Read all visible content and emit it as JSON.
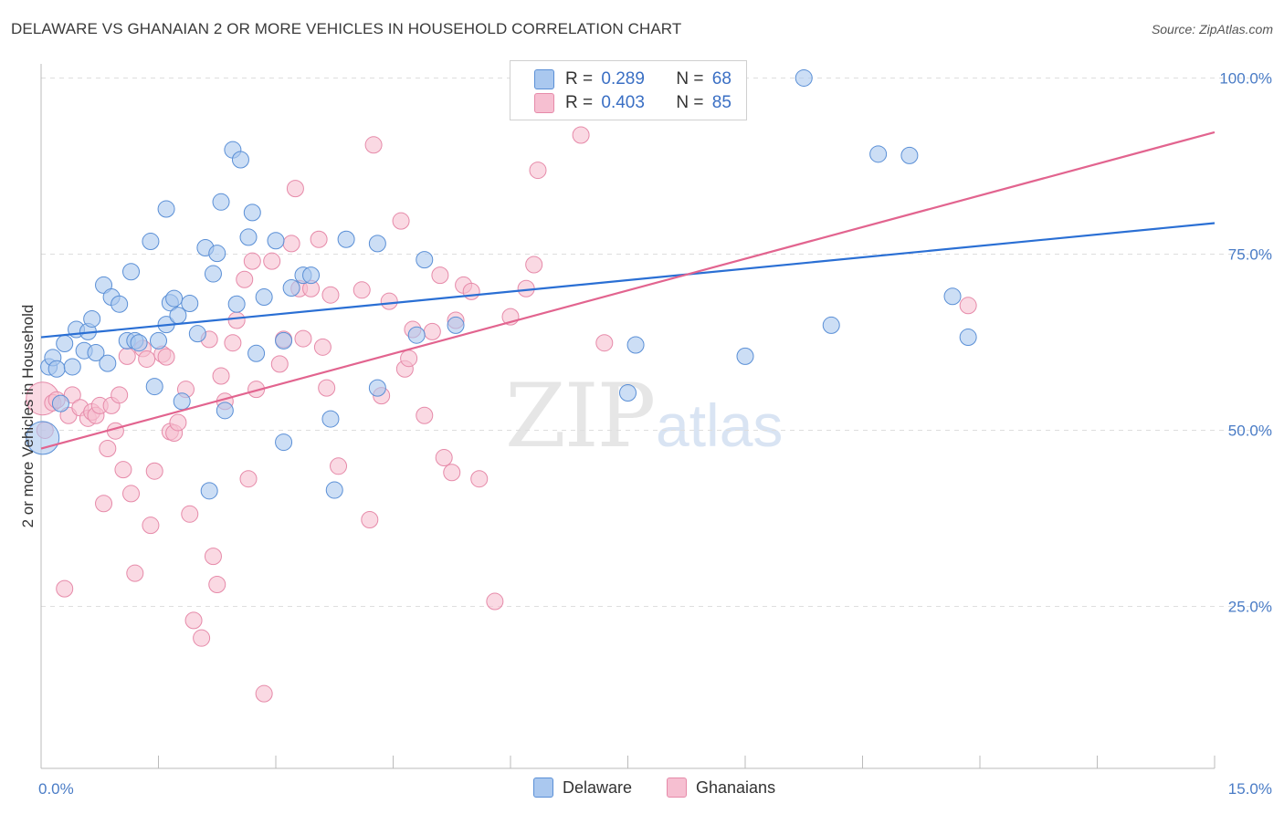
{
  "title": "DELAWARE VS GHANAIAN 2 OR MORE VEHICLES IN HOUSEHOLD CORRELATION CHART",
  "source": "Source: ZipAtlas.com",
  "watermark": {
    "zip": "ZIP",
    "atlas": "atlas"
  },
  "legend": {
    "delaware": {
      "r_label": "R =",
      "r_value": "0.289",
      "n_label": "N =",
      "n_value": "68"
    },
    "ghanaians": {
      "r_label": "R =",
      "r_value": "0.403",
      "n_label": "N =",
      "n_value": "85"
    }
  },
  "bottom_legend": {
    "delaware": "Delaware",
    "ghanaians": "Ghanaians"
  },
  "colors": {
    "delaware_fill": "#aac8ef",
    "delaware_stroke": "#5a8fd6",
    "delaware_line": "#2a6fd4",
    "ghana_fill": "#f6bfd1",
    "ghana_stroke": "#e68aa9",
    "ghana_line": "#e2648f",
    "axis_text": "#4a7cc6",
    "grid": "#dedede"
  },
  "chart_data": {
    "type": "scatter",
    "title": "DELAWARE VS GHANAIAN 2 OR MORE VEHICLES IN HOUSEHOLD CORRELATION CHART",
    "xlabel": "",
    "ylabel": "2 or more Vehicles in Household",
    "xlim": [
      0,
      15
    ],
    "ylim": [
      2,
      102
    ],
    "x_tick_labels": [
      "0.0%",
      "15.0%"
    ],
    "y_ticks": [
      25,
      50,
      75,
      100
    ],
    "y_tick_labels": [
      "25.0%",
      "50.0%",
      "75.0%",
      "100.0%"
    ],
    "grid": true,
    "legend_position": "top-center",
    "series": [
      {
        "name": "Delaware",
        "r": 0.289,
        "n": 68,
        "trend": {
          "x": [
            0,
            15
          ],
          "y": [
            63.2,
            79.4
          ]
        },
        "points": [
          [
            0.02,
            48.9,
            18
          ],
          [
            0.1,
            59,
            9
          ],
          [
            0.15,
            60.3,
            9
          ],
          [
            0.2,
            58.7,
            9
          ],
          [
            0.25,
            53.8,
            9
          ],
          [
            0.3,
            62.3,
            9
          ],
          [
            0.4,
            59,
            9
          ],
          [
            0.45,
            64.3,
            9
          ],
          [
            0.55,
            61.3,
            9
          ],
          [
            0.6,
            64,
            9
          ],
          [
            0.65,
            65.8,
            9
          ],
          [
            0.7,
            61,
            9
          ],
          [
            0.8,
            70.6,
            9
          ],
          [
            0.85,
            59.5,
            9
          ],
          [
            0.9,
            68.9,
            9
          ],
          [
            1.0,
            67.9,
            9
          ],
          [
            1.1,
            62.7,
            9
          ],
          [
            1.15,
            72.5,
            9
          ],
          [
            1.2,
            62.7,
            9
          ],
          [
            1.25,
            62.4,
            9
          ],
          [
            1.4,
            76.8,
            9
          ],
          [
            1.45,
            56.2,
            9
          ],
          [
            1.5,
            62.7,
            9
          ],
          [
            1.6,
            65,
            9
          ],
          [
            1.6,
            81.4,
            9
          ],
          [
            1.65,
            68.1,
            9
          ],
          [
            1.7,
            68.7,
            9
          ],
          [
            1.75,
            66.3,
            9
          ],
          [
            1.8,
            54.1,
            9
          ],
          [
            1.9,
            68,
            9
          ],
          [
            2.0,
            63.7,
            9
          ],
          [
            2.1,
            75.9,
            9
          ],
          [
            2.15,
            41.4,
            9
          ],
          [
            2.2,
            72.2,
            9
          ],
          [
            2.25,
            75.1,
            9
          ],
          [
            2.3,
            82.4,
            9
          ],
          [
            2.35,
            52.8,
            9
          ],
          [
            2.45,
            89.8,
            9
          ],
          [
            2.5,
            67.9,
            9
          ],
          [
            2.55,
            88.4,
            9
          ],
          [
            2.65,
            77.4,
            9
          ],
          [
            2.7,
            80.9,
            9
          ],
          [
            2.75,
            60.9,
            9
          ],
          [
            2.85,
            68.9,
            9
          ],
          [
            3.0,
            76.9,
            9
          ],
          [
            3.1,
            62.7,
            9
          ],
          [
            3.1,
            48.3,
            9
          ],
          [
            3.2,
            70.2,
            9
          ],
          [
            3.35,
            72,
            9
          ],
          [
            3.45,
            72,
            9
          ],
          [
            3.7,
            51.6,
            9
          ],
          [
            3.75,
            41.5,
            9
          ],
          [
            3.9,
            77.1,
            9
          ],
          [
            4.3,
            56,
            9
          ],
          [
            4.3,
            76.5,
            9
          ],
          [
            4.8,
            63.5,
            9
          ],
          [
            4.9,
            74.2,
            9
          ],
          [
            5.3,
            64.9,
            9
          ],
          [
            7.5,
            55.3,
            9
          ],
          [
            7.6,
            62.1,
            9
          ],
          [
            9.0,
            60.5,
            9
          ],
          [
            9.75,
            100,
            9
          ],
          [
            10.1,
            64.9,
            9
          ],
          [
            10.7,
            89.2,
            9
          ],
          [
            11.1,
            89,
            9
          ],
          [
            11.65,
            69,
            9
          ],
          [
            11.85,
            63.2,
            9
          ]
        ]
      },
      {
        "name": "Ghanaians",
        "r": 0.403,
        "n": 85,
        "trend": {
          "x": [
            0,
            15
          ],
          "y": [
            47.4,
            92.3
          ]
        },
        "points": [
          [
            0.02,
            54.5,
            18
          ],
          [
            0.05,
            50,
            9
          ],
          [
            0.15,
            53.9,
            9
          ],
          [
            0.2,
            54.3,
            9
          ],
          [
            0.3,
            27.5,
            9
          ],
          [
            0.35,
            52.1,
            9
          ],
          [
            0.4,
            55,
            9
          ],
          [
            0.5,
            53.2,
            9
          ],
          [
            0.6,
            51.7,
            9
          ],
          [
            0.65,
            52.6,
            9
          ],
          [
            0.7,
            52.1,
            9
          ],
          [
            0.75,
            53.5,
            9
          ],
          [
            0.8,
            39.6,
            9
          ],
          [
            0.85,
            47.4,
            9
          ],
          [
            0.9,
            53.5,
            9
          ],
          [
            0.95,
            49.9,
            9
          ],
          [
            1.0,
            55,
            9
          ],
          [
            1.05,
            44.4,
            9
          ],
          [
            1.1,
            60.5,
            9
          ],
          [
            1.15,
            41,
            9
          ],
          [
            1.2,
            29.7,
            9
          ],
          [
            1.3,
            61.6,
            9
          ],
          [
            1.35,
            60.1,
            9
          ],
          [
            1.4,
            36.5,
            9
          ],
          [
            1.45,
            44.2,
            9
          ],
          [
            1.55,
            60.8,
            9
          ],
          [
            1.6,
            60.4,
            9
          ],
          [
            1.65,
            49.8,
            9
          ],
          [
            1.7,
            49.6,
            9
          ],
          [
            1.75,
            51.1,
            9
          ],
          [
            1.85,
            55.8,
            9
          ],
          [
            1.9,
            38.1,
            9
          ],
          [
            1.95,
            23,
            9
          ],
          [
            2.05,
            20.5,
            9
          ],
          [
            2.15,
            62.9,
            9
          ],
          [
            2.2,
            32.1,
            9
          ],
          [
            2.25,
            28.1,
            9
          ],
          [
            2.3,
            57.7,
            9
          ],
          [
            2.35,
            54.1,
            9
          ],
          [
            2.45,
            62.4,
            9
          ],
          [
            2.5,
            65.6,
            9
          ],
          [
            2.6,
            71.4,
            9
          ],
          [
            2.65,
            43.1,
            9
          ],
          [
            2.7,
            74,
            9
          ],
          [
            2.75,
            55.8,
            9
          ],
          [
            2.85,
            12.6,
            9
          ],
          [
            2.95,
            74,
            9
          ],
          [
            3.05,
            59.4,
            9
          ],
          [
            3.1,
            62.9,
            9
          ],
          [
            3.2,
            76.5,
            9
          ],
          [
            3.25,
            84.3,
            9
          ],
          [
            3.3,
            70.1,
            9
          ],
          [
            3.35,
            63,
            9
          ],
          [
            3.45,
            70.1,
            9
          ],
          [
            3.55,
            77.1,
            9
          ],
          [
            3.6,
            61.8,
            9
          ],
          [
            3.65,
            56,
            9
          ],
          [
            3.7,
            69.2,
            9
          ],
          [
            3.8,
            44.9,
            9
          ],
          [
            4.1,
            69.9,
            9
          ],
          [
            4.2,
            37.3,
            9
          ],
          [
            4.25,
            90.5,
            9
          ],
          [
            4.35,
            54.9,
            9
          ],
          [
            4.45,
            68.3,
            9
          ],
          [
            4.6,
            79.7,
            9
          ],
          [
            4.65,
            58.7,
            9
          ],
          [
            4.7,
            60.2,
            9
          ],
          [
            4.75,
            64.3,
            9
          ],
          [
            4.9,
            52.1,
            9
          ],
          [
            5.0,
            64,
            9
          ],
          [
            5.1,
            72,
            9
          ],
          [
            5.15,
            46.1,
            9
          ],
          [
            5.25,
            44,
            9
          ],
          [
            5.3,
            65.6,
            9
          ],
          [
            5.4,
            70.6,
            9
          ],
          [
            5.5,
            69.7,
            9
          ],
          [
            5.6,
            43.1,
            9
          ],
          [
            5.8,
            25.7,
            9
          ],
          [
            6.0,
            66.1,
            9
          ],
          [
            6.2,
            70.1,
            9
          ],
          [
            6.3,
            73.5,
            9
          ],
          [
            6.35,
            86.9,
            9
          ],
          [
            6.9,
            91.9,
            9
          ],
          [
            7.2,
            62.4,
            9
          ],
          [
            11.85,
            67.7,
            9
          ]
        ]
      }
    ]
  }
}
